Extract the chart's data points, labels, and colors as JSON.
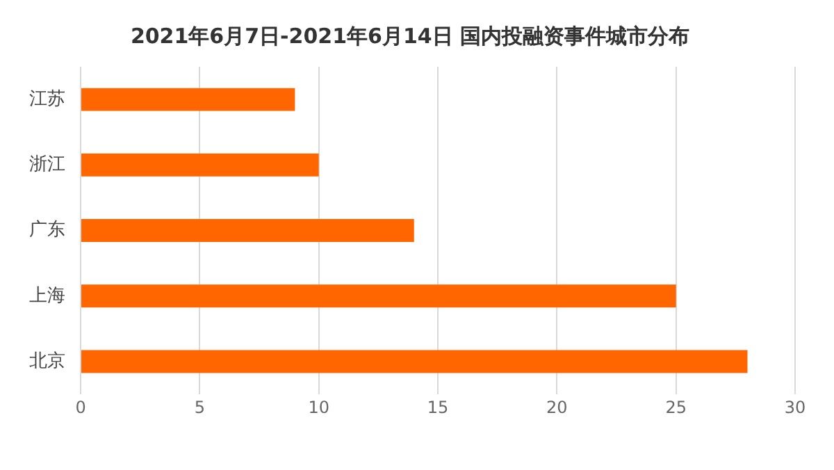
{
  "chart_data": {
    "type": "bar",
    "orientation": "horizontal",
    "title": "2021年6月7日-2021年6月14日 国内投融资事件城市分布",
    "categories": [
      "江苏",
      "浙江",
      "广东",
      "上海",
      "北京"
    ],
    "values": [
      9,
      10,
      14,
      25,
      28
    ],
    "color": "#ff6600",
    "xlim": [
      0,
      30
    ],
    "xticks": [
      0,
      5,
      10,
      15,
      20,
      25,
      30
    ],
    "grid": "x",
    "legend": false
  }
}
